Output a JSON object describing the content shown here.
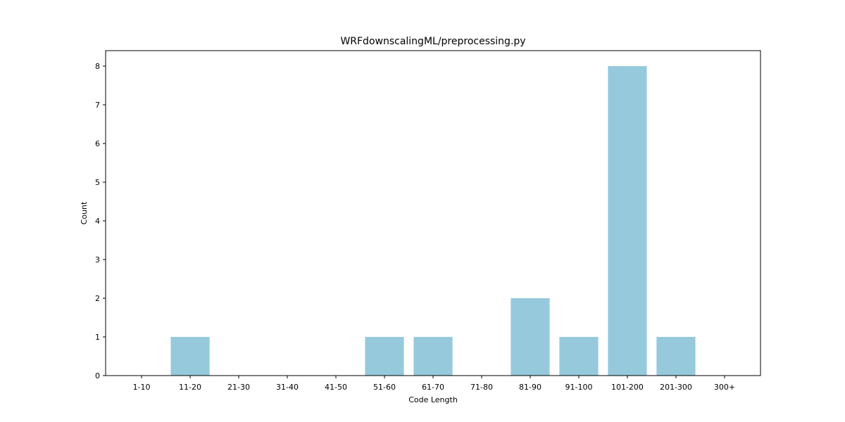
{
  "chart_data": {
    "type": "bar",
    "title": "WRFdownscalingML/preprocessing.py",
    "xlabel": "Code Length",
    "ylabel": "Count",
    "categories": [
      "1-10",
      "11-20",
      "21-30",
      "31-40",
      "41-50",
      "51-60",
      "61-70",
      "71-80",
      "81-90",
      "91-100",
      "101-200",
      "201-300",
      "300+"
    ],
    "values": [
      0,
      1,
      0,
      0,
      0,
      1,
      1,
      0,
      2,
      1,
      8,
      1,
      0
    ],
    "ylim": [
      0,
      8.4
    ],
    "yticks": [
      0,
      1,
      2,
      3,
      4,
      5,
      6,
      7,
      8
    ],
    "bar_color": "#96c9dc",
    "grid": false
  }
}
